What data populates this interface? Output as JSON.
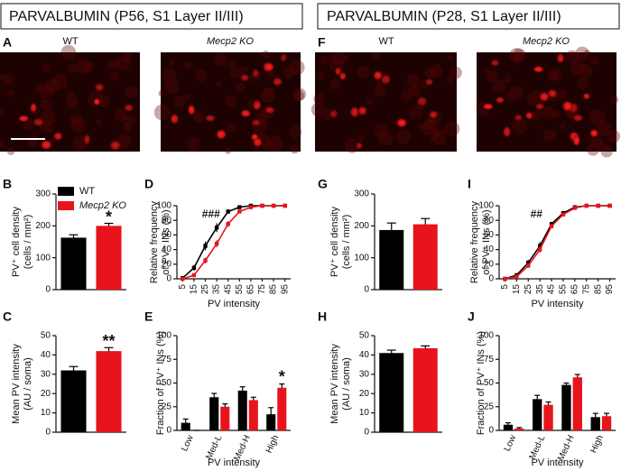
{
  "headers": [
    "PARVALBUMIN (P56, S1 Layer II/III)",
    "PARVALBUMIN (P28, S1 Layer II/III)"
  ],
  "image_panels": [
    {
      "panel": "A",
      "labels": [
        "WT",
        "Mecp2 KO"
      ]
    },
    {
      "panel": "F",
      "labels": [
        "WT",
        "Mecp2 KO"
      ]
    }
  ],
  "chart_data": [
    {
      "type": "bar",
      "panel": "B",
      "ylabel": [
        "PV⁺ cell density",
        "(cells / mm²)"
      ],
      "ylim": [
        0,
        300
      ],
      "yticks": [
        0,
        100,
        200,
        300
      ],
      "legend": true,
      "annotation": "*",
      "series": [
        {
          "name": "WT",
          "color": "#000000",
          "values": [
            163
          ],
          "errors": [
            9
          ]
        },
        {
          "name": "Mecp2 KO",
          "color": "#e8141b",
          "values": [
            200
          ],
          "errors": [
            8
          ]
        }
      ]
    },
    {
      "type": "bar",
      "panel": "C",
      "ylabel": [
        "Mean PV intensity",
        "(AU / soma)"
      ],
      "ylim": [
        0,
        50
      ],
      "yticks": [
        0,
        10,
        20,
        30,
        40,
        50
      ],
      "annotation": "**",
      "series": [
        {
          "color": "#000000",
          "values": [
            32
          ],
          "errors": [
            2
          ]
        },
        {
          "color": "#e8141b",
          "values": [
            42
          ],
          "errors": [
            1.8
          ]
        }
      ]
    },
    {
      "type": "line",
      "panel": "D",
      "ylabel": [
        "Relative frequency",
        "of PV⁺ INs (%)"
      ],
      "xlabel": "PV intensity",
      "annotation": "###",
      "x": [
        5,
        15,
        25,
        35,
        45,
        55,
        65,
        75,
        85,
        95
      ],
      "xlim": [
        0,
        100
      ],
      "xticks": [
        5,
        15,
        25,
        35,
        45,
        55,
        65,
        75,
        85,
        95
      ],
      "ylim": [
        0,
        100
      ],
      "yticks": [
        0,
        20,
        40,
        60,
        80,
        100
      ],
      "series": [
        {
          "color": "#000000",
          "values": [
            1,
            15,
            45,
            70,
            92,
            98,
            100,
            100,
            100,
            100
          ],
          "errors": [
            1,
            4,
            6,
            6,
            3,
            1,
            0,
            0,
            0,
            0
          ]
        },
        {
          "color": "#e8141b",
          "values": [
            0,
            5,
            25,
            48,
            75,
            92,
            98,
            100,
            100,
            100
          ],
          "errors": [
            0,
            2,
            4,
            5,
            4,
            2,
            1,
            0,
            0,
            0
          ]
        }
      ]
    },
    {
      "type": "grouped_bar",
      "panel": "E",
      "ylabel": [
        "Fraction of PV⁺ INs (%)"
      ],
      "xlabel": "PV intensity",
      "annotation": "*",
      "categories": [
        "Low",
        "Med-L",
        "Med-H",
        "High"
      ],
      "ylim": [
        0,
        100
      ],
      "yticks": [
        0,
        25,
        50,
        75,
        100
      ],
      "series": [
        {
          "color": "#000000",
          "values": [
            8,
            35,
            42,
            17
          ],
          "errors": [
            4,
            4,
            4,
            7
          ]
        },
        {
          "color": "#e8141b",
          "values": [
            0,
            25,
            32,
            45
          ],
          "errors": [
            0,
            3,
            3,
            4
          ]
        }
      ]
    },
    {
      "type": "bar",
      "panel": "G",
      "ylabel": [
        "PV⁺ cell density",
        "(cells / mm²)"
      ],
      "ylim": [
        0,
        300
      ],
      "yticks": [
        0,
        100,
        200,
        300
      ],
      "series": [
        {
          "color": "#000000",
          "values": [
            187
          ],
          "errors": [
            22
          ]
        },
        {
          "color": "#e8141b",
          "values": [
            205
          ],
          "errors": [
            18
          ]
        }
      ]
    },
    {
      "type": "bar",
      "panel": "H",
      "ylabel": [
        "Mean PV intensity",
        "(AU / soma)"
      ],
      "ylim": [
        0,
        50
      ],
      "yticks": [
        0,
        10,
        20,
        30,
        40,
        50
      ],
      "series": [
        {
          "color": "#000000",
          "values": [
            41
          ],
          "errors": [
            1.5
          ]
        },
        {
          "color": "#e8141b",
          "values": [
            43.5
          ],
          "errors": [
            1.2
          ]
        }
      ]
    },
    {
      "type": "line",
      "panel": "I",
      "ylabel": [
        "Relative frequency",
        "of PV⁺ INs (%)"
      ],
      "xlabel": "PV intensity",
      "annotation": "##",
      "x": [
        5,
        15,
        25,
        35,
        45,
        55,
        65,
        75,
        85,
        95
      ],
      "xlim": [
        0,
        100
      ],
      "xticks": [
        5,
        15,
        25,
        35,
        45,
        55,
        65,
        75,
        85,
        95
      ],
      "ylim": [
        0,
        100
      ],
      "yticks": [
        0,
        20,
        40,
        60,
        80,
        100
      ],
      "series": [
        {
          "color": "#000000",
          "values": [
            0,
            5,
            22,
            45,
            75,
            90,
            98,
            100,
            100,
            100
          ],
          "errors": [
            0,
            2,
            4,
            5,
            3,
            2,
            1,
            0,
            0,
            0
          ]
        },
        {
          "color": "#e8141b",
          "values": [
            0,
            3,
            18,
            40,
            72,
            88,
            97,
            100,
            100,
            100
          ],
          "errors": [
            0,
            1,
            3,
            4,
            3,
            2,
            1,
            0,
            0,
            0
          ]
        }
      ]
    },
    {
      "type": "grouped_bar",
      "panel": "J",
      "ylabel": [
        "Fraction of PV⁺ INs (%)"
      ],
      "xlabel": "PV intensity",
      "categories": [
        "Low",
        "Med-L",
        "Med-H",
        "High"
      ],
      "ylim": [
        0,
        100
      ],
      "yticks": [
        0,
        25,
        50,
        75,
        100
      ],
      "series": [
        {
          "color": "#000000",
          "values": [
            6,
            33,
            48,
            14
          ],
          "errors": [
            2,
            4,
            2,
            4
          ]
        },
        {
          "color": "#e8141b",
          "values": [
            2,
            27,
            56,
            15
          ],
          "errors": [
            1,
            3,
            3,
            3
          ]
        }
      ]
    }
  ]
}
